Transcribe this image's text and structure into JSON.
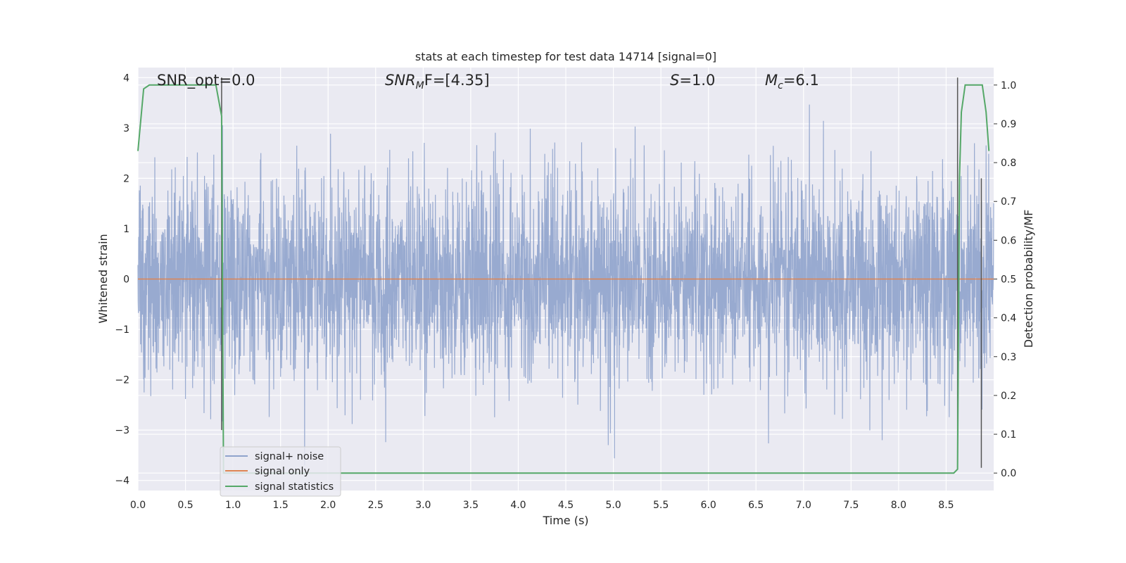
{
  "chart_data": {
    "type": "line",
    "title": "stats at each timestep for test data 14714 [signal=0]",
    "xlabel": "Time (s)",
    "ylabel_left": "Whitened strain",
    "ylabel_right": "Detection probability/MF",
    "xlim": [
      0.0,
      9.0
    ],
    "ylim_left": [
      -4.2,
      4.2
    ],
    "ylim_right": [
      -0.045,
      1.045
    ],
    "x_ticks": [
      "0.0",
      "0.5",
      "1.0",
      "1.5",
      "2.0",
      "2.5",
      "3.0",
      "3.5",
      "4.0",
      "4.5",
      "5.0",
      "5.5",
      "6.0",
      "6.5",
      "7.0",
      "7.5",
      "8.0",
      "8.5"
    ],
    "y_ticks_left": [
      "4",
      "3",
      "2",
      "1",
      "0",
      "−1",
      "−2",
      "−3",
      "−4"
    ],
    "y_ticks_right": [
      "1.0",
      "0.9",
      "0.8",
      "0.7",
      "0.6",
      "0.5",
      "0.4",
      "0.3",
      "0.2",
      "0.1",
      "0.0"
    ],
    "grid": true,
    "annotations": {
      "snr_opt": "SNR_opt=0.0",
      "snr_mf_sym": "SNR",
      "snr_mf_sub": "M",
      "snr_mf_rest": "F=[4.35]",
      "s_sym": "S",
      "s_rest": "=1.0",
      "mc_sym": "M",
      "mc_sub": "c",
      "mc_rest": "=6.1"
    },
    "legend": {
      "placement": "lower-left",
      "entries": [
        "signal+ noise",
        "signal only",
        "signal statistics"
      ]
    },
    "colors": {
      "noise": "#8fa3cc",
      "signal": "#dd8452",
      "stats": "#55a868",
      "vlines": "#555555",
      "background": "#eaeaf2"
    },
    "series": [
      {
        "name": "signal+ noise",
        "axis": "left",
        "noise_std": 1.0,
        "samples": 3600
      },
      {
        "name": "signal only",
        "axis": "left",
        "values_constant": 0.0
      },
      {
        "name": "signal statistics",
        "axis": "right",
        "x": [
          0.0,
          0.06,
          0.12,
          0.25,
          0.5,
          0.75,
          0.82,
          0.88,
          0.9,
          0.93,
          0.98,
          1.1,
          2.0,
          4.0,
          6.0,
          8.0,
          8.5,
          8.58,
          8.62,
          8.64,
          8.66,
          8.7,
          8.85,
          8.88,
          8.92,
          8.95
        ],
        "y": [
          0.83,
          0.99,
          1.0,
          1.0,
          1.0,
          1.0,
          1.0,
          0.92,
          0.0,
          0.0,
          0.0,
          0.0,
          0.0,
          0.0,
          0.0,
          0.0,
          0.0,
          0.0,
          0.01,
          0.76,
          0.93,
          1.0,
          1.0,
          1.0,
          0.93,
          0.83
        ]
      }
    ],
    "vertical_lines": [
      {
        "x": 0.88,
        "y_from": -3.0,
        "y_to": 4.0
      },
      {
        "x": 8.62,
        "y_from": -3.75,
        "y_to": 4.0
      },
      {
        "x": 8.87,
        "y_from": -3.75,
        "y_to": 2.0
      }
    ]
  }
}
